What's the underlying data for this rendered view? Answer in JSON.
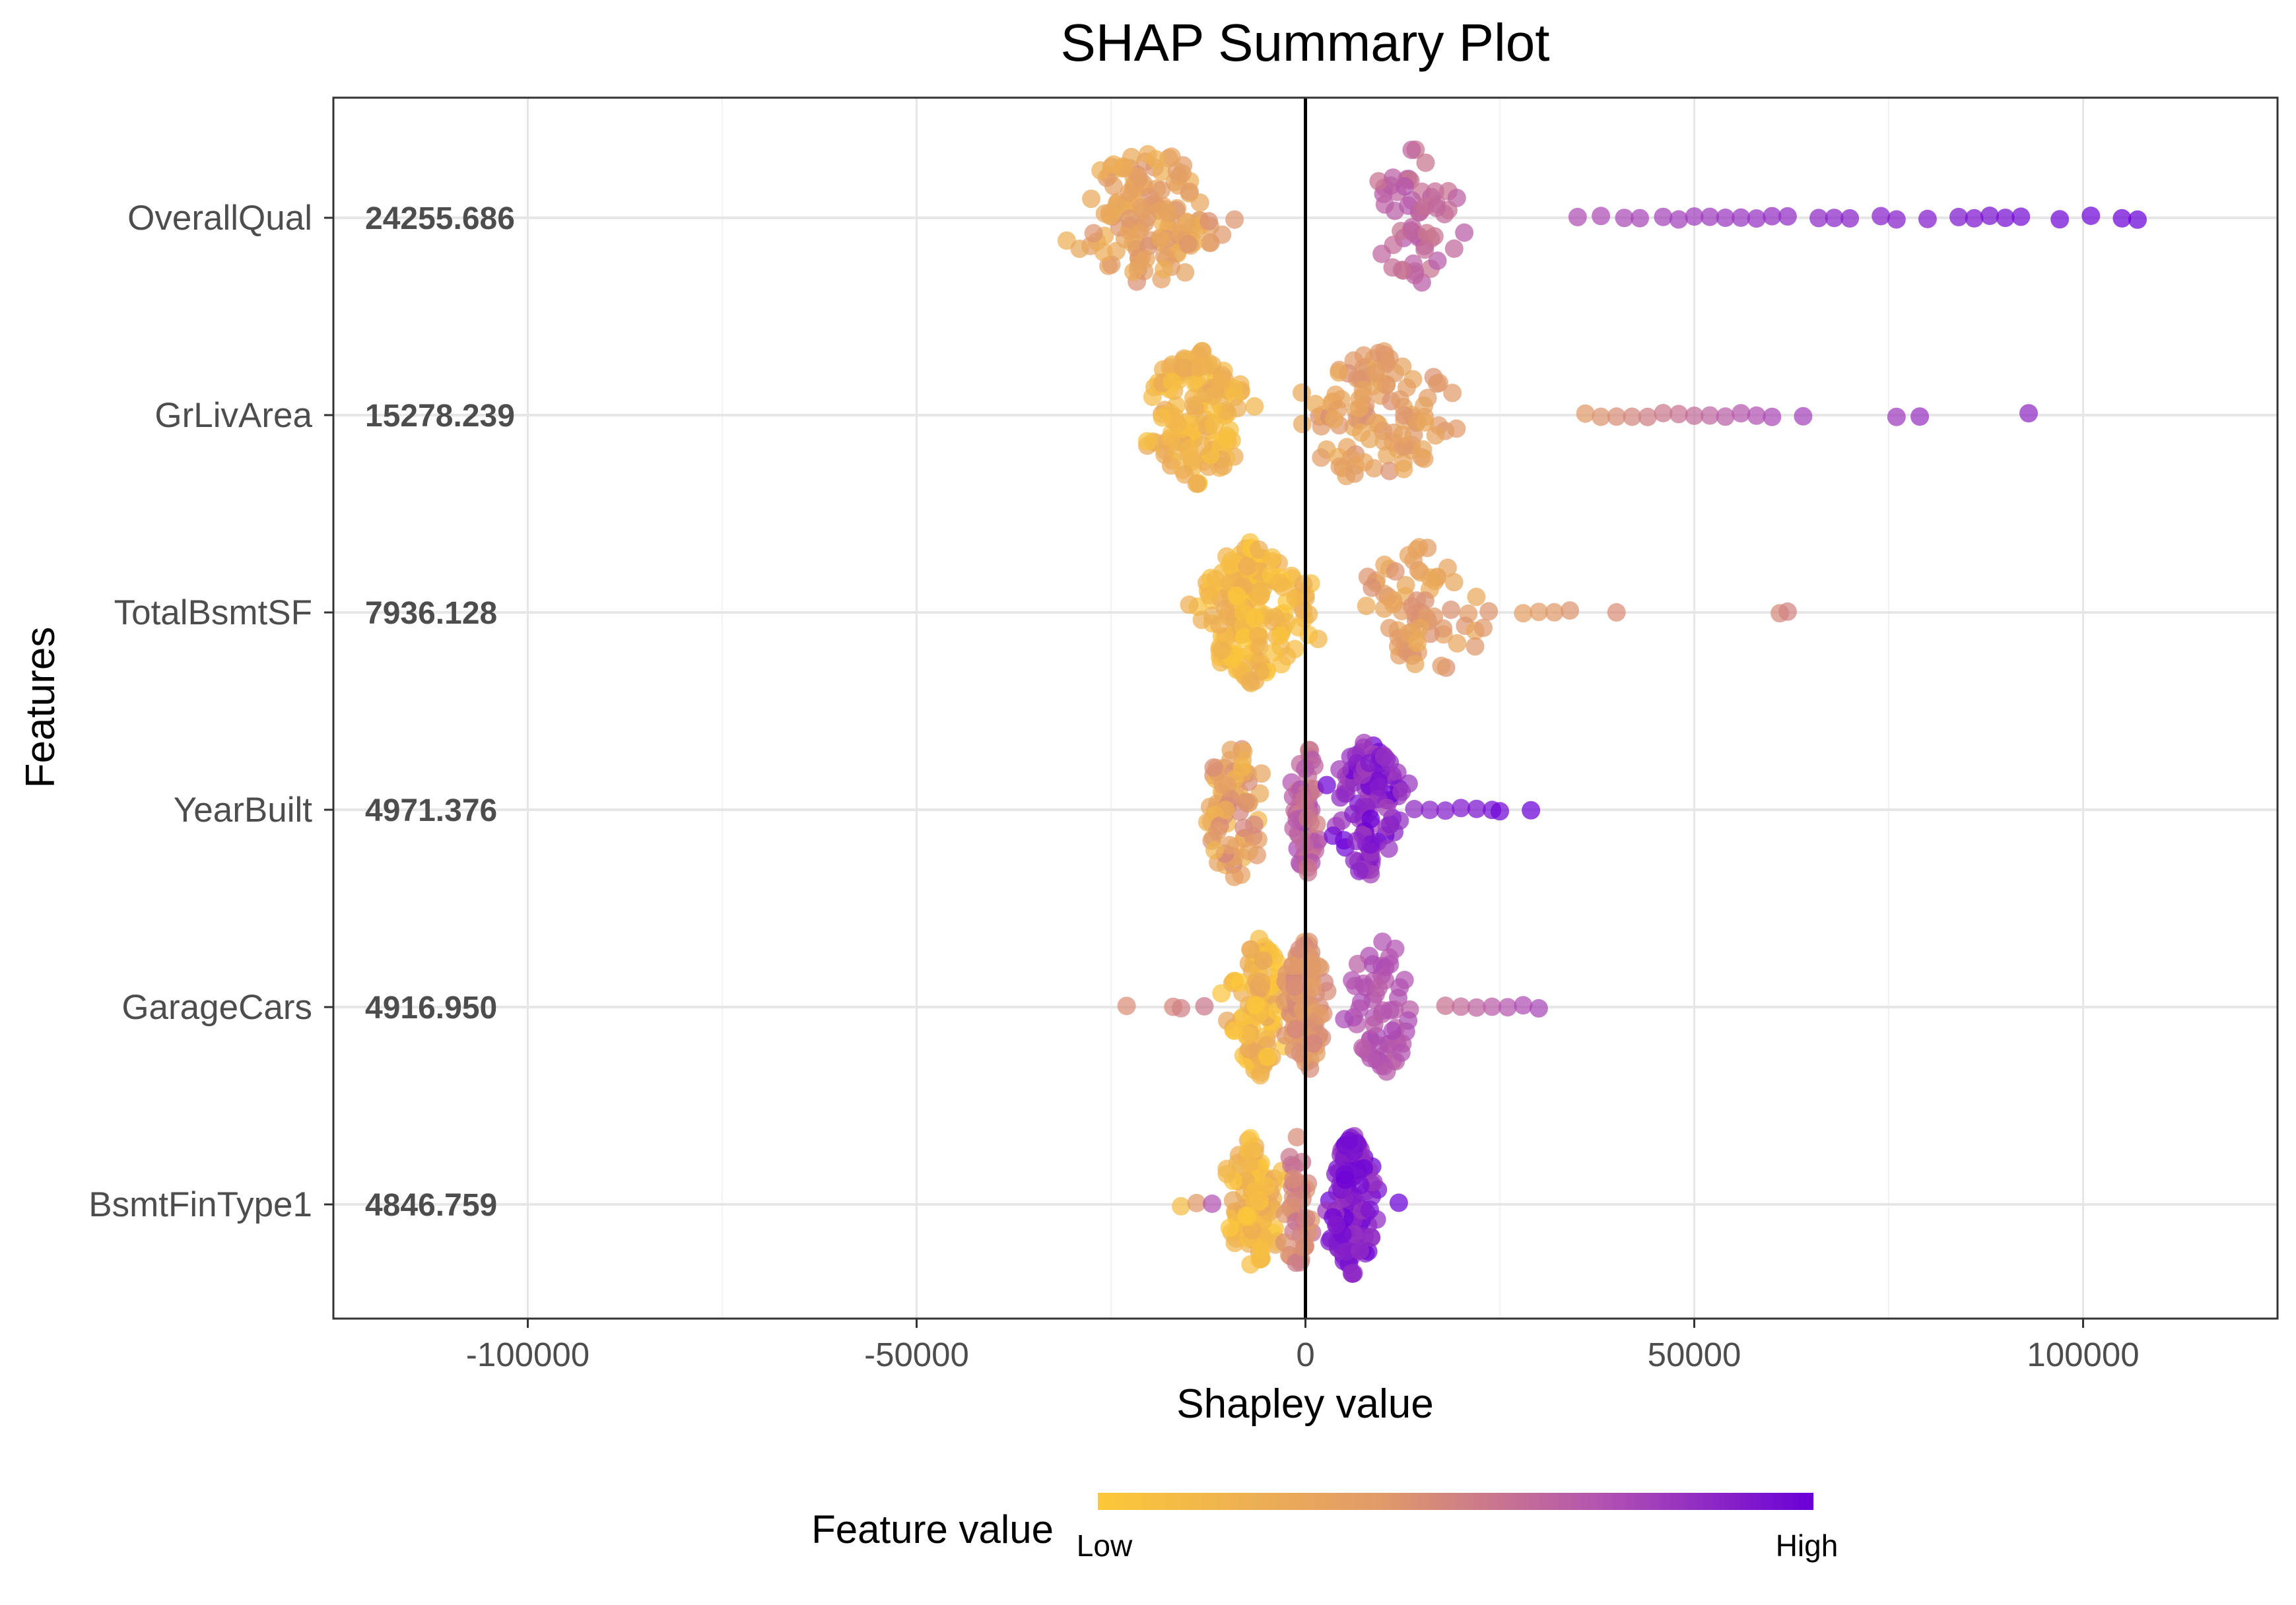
{
  "chart_data": {
    "type": "scatter",
    "subtype": "shap-beeswarm",
    "title": "SHAP Summary Plot",
    "xlabel": "Shapley value",
    "ylabel": "Features",
    "xlim": [
      -125000,
      125000
    ],
    "xticks": [
      -100000,
      -50000,
      0,
      50000,
      100000
    ],
    "xtick_labels": [
      "-100000",
      "-50000",
      "0",
      "50000",
      "100000"
    ],
    "grid": true,
    "legend": {
      "title": "Feature value",
      "position": "bottom",
      "low_label": "Low",
      "high_label": "High",
      "low_color": "#fcc838",
      "mid_color": "#e09a6a",
      "high_color": "#6a00d8"
    },
    "features": [
      {
        "name": "OverallQual",
        "mean_abs_shap": "24255.686",
        "clusters": [
          {
            "center": -20000,
            "spread": 16000,
            "count": 140,
            "value_low": 0.2,
            "value_high": 0.45
          },
          {
            "center": 14000,
            "spread": 9000,
            "count": 55,
            "value_low": 0.55,
            "value_high": 0.7
          }
        ],
        "tail": [
          35000,
          38000,
          41000,
          43000,
          46000,
          48000,
          50000,
          52000,
          54000,
          56000,
          58000,
          60000,
          62000,
          66000,
          68000,
          70000,
          74000,
          76000,
          80000,
          84000,
          86000,
          88000,
          90000,
          92000,
          97000,
          101000,
          105000,
          107000
        ],
        "tail_value_low": 0.72,
        "tail_value_high": 1.0
      },
      {
        "name": "GrLivArea",
        "mean_abs_shap": "15278.239",
        "clusters": [
          {
            "center": -14000,
            "spread": 10000,
            "count": 140,
            "value_low": 0.05,
            "value_high": 0.3
          },
          {
            "center": 8000,
            "spread": 16000,
            "count": 110,
            "value_low": 0.25,
            "value_high": 0.45
          }
        ],
        "tail": [
          36000,
          38000,
          40000,
          42000,
          44000,
          46000,
          48000,
          50000,
          52000,
          54000,
          56000,
          58000,
          60000,
          64000,
          76000,
          79000,
          93000
        ],
        "tail_value_low": 0.4,
        "tail_value_high": 0.85
      },
      {
        "name": "TotalBsmtSF",
        "mean_abs_shap": "7936.128",
        "clusters": [
          {
            "center": -7000,
            "spread": 12000,
            "count": 180,
            "value_low": 0.0,
            "value_high": 0.25
          },
          {
            "center": 15000,
            "spread": 12000,
            "count": 70,
            "value_low": 0.25,
            "value_high": 0.45
          }
        ],
        "tail": [
          28000,
          30000,
          32000,
          34000,
          40000,
          61000,
          62000
        ],
        "tail_value_low": 0.35,
        "tail_value_high": 0.5
      },
      {
        "name": "YearBuilt",
        "mean_abs_shap": "4971.376",
        "clusters": [
          {
            "center": -9000,
            "spread": 7000,
            "count": 70,
            "value_low": 0.15,
            "value_high": 0.5
          },
          {
            "center": 0,
            "spread": 3000,
            "count": 60,
            "value_low": 0.5,
            "value_high": 0.75
          },
          {
            "center": 8000,
            "spread": 7000,
            "count": 110,
            "value_low": 0.75,
            "value_high": 1.0
          }
        ],
        "tail": [
          14000,
          16000,
          18000,
          20000,
          22000,
          24000,
          25000,
          29000
        ],
        "tail_value_low": 0.85,
        "tail_value_high": 1.0
      },
      {
        "name": "GarageCars",
        "mean_abs_shap": "4916.950",
        "clusters": [
          {
            "center": -6000,
            "spread": 6000,
            "count": 100,
            "value_low": 0.0,
            "value_high": 0.3
          },
          {
            "center": 0,
            "spread": 4000,
            "count": 100,
            "value_low": 0.35,
            "value_high": 0.5
          },
          {
            "center": 10000,
            "spread": 7000,
            "count": 60,
            "value_low": 0.65,
            "value_high": 0.75
          }
        ],
        "tail": [
          -23000,
          -17000,
          -16000,
          -13000,
          18000,
          20000,
          22000,
          24000,
          26000,
          28000,
          30000
        ],
        "tail_value_low": 0.45,
        "tail_value_high": 0.75
      },
      {
        "name": "BsmtFinType1",
        "mean_abs_shap": "4846.759",
        "clusters": [
          {
            "center": -7000,
            "spread": 6000,
            "count": 100,
            "value_low": 0.0,
            "value_high": 0.3
          },
          {
            "center": -1000,
            "spread": 3000,
            "count": 40,
            "value_low": 0.4,
            "value_high": 0.6
          },
          {
            "center": 6000,
            "spread": 5000,
            "count": 130,
            "value_low": 0.8,
            "value_high": 1.0
          }
        ],
        "tail": [
          -16000,
          -14000,
          -12000,
          12000
        ],
        "tail_value_low": 0.1,
        "tail_value_high": 1.0
      }
    ]
  }
}
